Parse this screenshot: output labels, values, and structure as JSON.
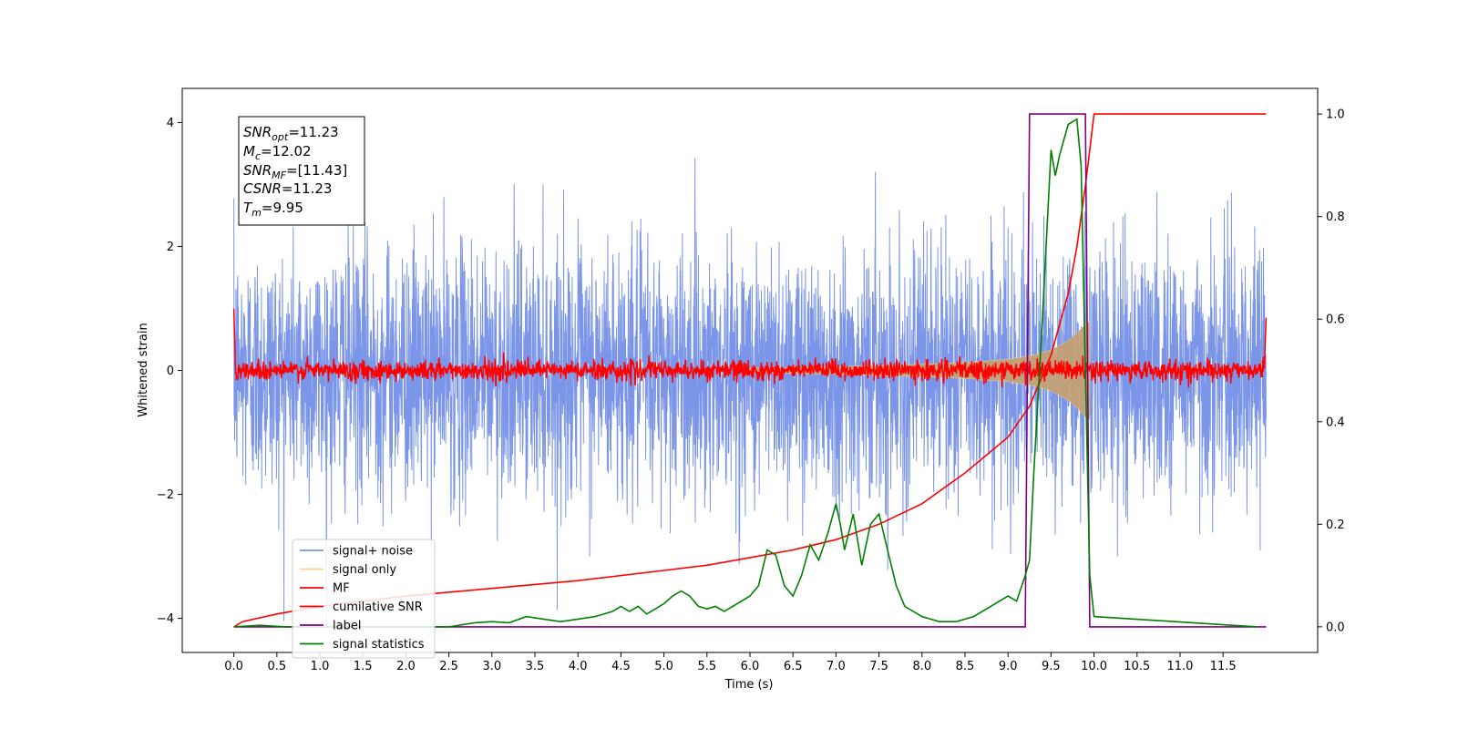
{
  "chart_data": {
    "type": "line",
    "xlabel": "Time (s)",
    "ylabel": "Whitened strain",
    "xlim": [
      -0.6,
      12.6
    ],
    "ylim": [
      -4.55,
      4.55
    ],
    "y2lim": [
      -0.05,
      1.05
    ],
    "x_ticks": [
      "0.0",
      "0.5",
      "1.0",
      "1.5",
      "2.0",
      "2.5",
      "3.0",
      "3.5",
      "4.0",
      "4.5",
      "5.0",
      "5.5",
      "6.0",
      "6.5",
      "7.0",
      "7.5",
      "8.0",
      "8.5",
      "9.0",
      "9.5",
      "10.0",
      "10.5",
      "11.0",
      "11.5"
    ],
    "y_ticks": [
      "−4",
      "−2",
      "0",
      "2",
      "4"
    ],
    "y2_ticks": [
      "0.0",
      "0.2",
      "0.4",
      "0.6",
      "0.8",
      "1.0"
    ],
    "info_box": {
      "snr_opt": {
        "base": "SNR",
        "sub": "opt",
        "value": "=11.23"
      },
      "mc": {
        "base": "M",
        "sub": "c",
        "value": "=12.02"
      },
      "snr_mf": {
        "base": "SNR",
        "sub": "MF",
        "value": "=[11.43]"
      },
      "csnr": {
        "base": "CSNR",
        "value": "=11.23"
      },
      "tm": {
        "base": "T",
        "sub": "m",
        "value": "=9.95"
      }
    },
    "legend": {
      "placement": "lower-left",
      "entries": [
        {
          "label": "signal+ noise",
          "color": "#7b96e8"
        },
        {
          "label": "signal only",
          "color": "#f5d38c"
        },
        {
          "label": "MF",
          "color": "#ff0000"
        },
        {
          "label": "cumilative SNR",
          "color": "#ff0000"
        },
        {
          "label": "label",
          "color": "#800080"
        },
        {
          "label": "signal statistics",
          "color": "#008000"
        }
      ]
    },
    "series": [
      {
        "name": "signal+ noise",
        "axis": "left",
        "color": "#7b96e8",
        "kind": "noise",
        "x_range": [
          0,
          12
        ],
        "std": 1.0
      },
      {
        "name": "signal only",
        "axis": "left",
        "color": "#c8a070",
        "kind": "chirp_envelope",
        "x": [
          6.0,
          7.0,
          8.0,
          8.5,
          9.0,
          9.3,
          9.5,
          9.7,
          9.8,
          9.9,
          9.95
        ],
        "amplitude": [
          0.04,
          0.06,
          0.1,
          0.13,
          0.18,
          0.25,
          0.33,
          0.48,
          0.6,
          0.75,
          0.8
        ]
      },
      {
        "name": "MF",
        "axis": "left",
        "color": "#ff0000",
        "kind": "noise",
        "x_range": [
          0,
          12
        ],
        "std": 0.08,
        "endpoints": {
          "start": 1.0,
          "end": 0.85
        }
      },
      {
        "name": "cumilative SNR",
        "axis": "right",
        "color": "#ff0000",
        "x": [
          0,
          0.1,
          0.5,
          1.0,
          2.0,
          3.0,
          4.0,
          5.0,
          5.5,
          6.0,
          6.5,
          7.0,
          7.5,
          8.0,
          8.5,
          9.0,
          9.25,
          9.5,
          9.7,
          9.8,
          9.9,
          9.95,
          10.0,
          12.0
        ],
        "y": [
          0.0,
          0.01,
          0.025,
          0.04,
          0.06,
          0.075,
          0.09,
          0.11,
          0.12,
          0.135,
          0.15,
          0.17,
          0.2,
          0.24,
          0.3,
          0.37,
          0.43,
          0.53,
          0.65,
          0.74,
          0.86,
          0.93,
          1.0,
          1.0
        ]
      },
      {
        "name": "label",
        "axis": "right",
        "color": "#800080",
        "x": [
          0,
          9.2,
          9.25,
          9.9,
          9.95,
          12.0
        ],
        "y": [
          0,
          0,
          1,
          1,
          0,
          0
        ]
      },
      {
        "name": "signal statistics",
        "axis": "right",
        "color": "#008000",
        "x": [
          0.0,
          0.3,
          0.6,
          1.0,
          1.5,
          2.0,
          2.5,
          2.8,
          3.0,
          3.2,
          3.4,
          3.6,
          3.8,
          4.0,
          4.2,
          4.4,
          4.5,
          4.6,
          4.7,
          4.8,
          4.9,
          5.0,
          5.1,
          5.2,
          5.3,
          5.4,
          5.5,
          5.6,
          5.7,
          5.8,
          5.9,
          6.0,
          6.1,
          6.2,
          6.3,
          6.4,
          6.5,
          6.6,
          6.7,
          6.8,
          6.9,
          7.0,
          7.05,
          7.1,
          7.2,
          7.3,
          7.4,
          7.5,
          7.6,
          7.7,
          7.8,
          7.9,
          8.0,
          8.2,
          8.4,
          8.6,
          8.8,
          8.9,
          9.0,
          9.1,
          9.2,
          9.25,
          9.3,
          9.4,
          9.5,
          9.55,
          9.6,
          9.7,
          9.8,
          9.85,
          9.9,
          9.95,
          10.0,
          11.9
        ],
        "y": [
          0.0,
          0.003,
          0.0,
          0.0,
          0.0,
          0.0,
          0.0,
          0.008,
          0.01,
          0.008,
          0.02,
          0.015,
          0.01,
          0.015,
          0.02,
          0.03,
          0.04,
          0.03,
          0.04,
          0.025,
          0.035,
          0.045,
          0.06,
          0.07,
          0.06,
          0.04,
          0.035,
          0.04,
          0.03,
          0.04,
          0.05,
          0.06,
          0.08,
          0.15,
          0.14,
          0.08,
          0.06,
          0.1,
          0.16,
          0.13,
          0.18,
          0.24,
          0.2,
          0.15,
          0.22,
          0.12,
          0.2,
          0.22,
          0.15,
          0.08,
          0.04,
          0.03,
          0.02,
          0.01,
          0.01,
          0.02,
          0.04,
          0.05,
          0.06,
          0.05,
          0.1,
          0.13,
          0.3,
          0.6,
          0.93,
          0.88,
          0.92,
          0.98,
          0.99,
          0.9,
          0.5,
          0.1,
          0.02,
          0.0
        ]
      }
    ]
  }
}
